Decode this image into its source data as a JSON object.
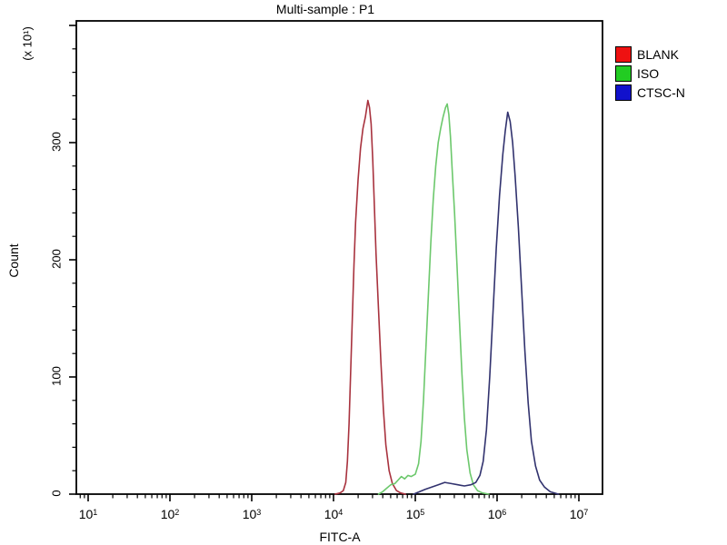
{
  "chart_data": {
    "type": "line",
    "title": "Multi-sample : P1",
    "xlabel": "FITC-A",
    "ylabel": "Count",
    "y_scale_note": "(x 10¹)",
    "x_axis": {
      "scale": "log",
      "min_log": 0.856,
      "max_log": 7.28,
      "decade_min": 1,
      "decade_max": 7,
      "tick_start_log": 0.9
    },
    "y_axis": {
      "min": 0,
      "max": 400,
      "major_step": 100,
      "minor_step": 20
    },
    "x_ticks": [
      {
        "base": "10",
        "exp": "1"
      },
      {
        "base": "10",
        "exp": "2"
      },
      {
        "base": "10",
        "exp": "3"
      },
      {
        "base": "10",
        "exp": "4"
      },
      {
        "base": "10",
        "exp": "5"
      },
      {
        "base": "10",
        "exp": "6"
      },
      {
        "base": "10",
        "exp": "7"
      }
    ],
    "y_ticks": [
      "0",
      "100",
      "200",
      "300"
    ],
    "grid": false,
    "legend_position": "right",
    "legend": [
      {
        "label": "BLANK",
        "swatch": "#ee1111"
      },
      {
        "label": "ISO",
        "swatch": "#22cc22"
      },
      {
        "label": "CTSC-N",
        "swatch": "#1111cc"
      }
    ],
    "frame_color": "#000000",
    "series": [
      {
        "name": "BLANK",
        "color": "#a8323e",
        "peak_x": 27000,
        "peak_count": 336,
        "points": [
          [
            4.02,
            0
          ],
          [
            4.08,
            1
          ],
          [
            4.12,
            3
          ],
          [
            4.15,
            10
          ],
          [
            4.17,
            28
          ],
          [
            4.19,
            60
          ],
          [
            4.21,
            105
          ],
          [
            4.23,
            150
          ],
          [
            4.25,
            195
          ],
          [
            4.27,
            232
          ],
          [
            4.3,
            268
          ],
          [
            4.33,
            295
          ],
          [
            4.36,
            312
          ],
          [
            4.39,
            322
          ],
          [
            4.42,
            336
          ],
          [
            4.44,
            330
          ],
          [
            4.46,
            316
          ],
          [
            4.48,
            285
          ],
          [
            4.5,
            245
          ],
          [
            4.52,
            205
          ],
          [
            4.55,
            158
          ],
          [
            4.58,
            112
          ],
          [
            4.61,
            72
          ],
          [
            4.64,
            42
          ],
          [
            4.68,
            20
          ],
          [
            4.72,
            9
          ],
          [
            4.77,
            3
          ],
          [
            4.82,
            1
          ],
          [
            4.88,
            0
          ]
        ]
      },
      {
        "name": "ISO",
        "color": "#6cc86c",
        "peak_x": 245000,
        "peak_count": 333,
        "points": [
          [
            4.55,
            0
          ],
          [
            4.6,
            2
          ],
          [
            4.65,
            5
          ],
          [
            4.7,
            8
          ],
          [
            4.75,
            9
          ],
          [
            4.79,
            12
          ],
          [
            4.83,
            15
          ],
          [
            4.87,
            13
          ],
          [
            4.91,
            16
          ],
          [
            4.95,
            15
          ],
          [
            5.0,
            17
          ],
          [
            5.04,
            26
          ],
          [
            5.07,
            45
          ],
          [
            5.1,
            80
          ],
          [
            5.13,
            125
          ],
          [
            5.16,
            170
          ],
          [
            5.19,
            215
          ],
          [
            5.22,
            252
          ],
          [
            5.25,
            280
          ],
          [
            5.28,
            300
          ],
          [
            5.31,
            312
          ],
          [
            5.34,
            322
          ],
          [
            5.37,
            330
          ],
          [
            5.39,
            333
          ],
          [
            5.41,
            324
          ],
          [
            5.43,
            305
          ],
          [
            5.45,
            278
          ],
          [
            5.48,
            240
          ],
          [
            5.51,
            195
          ],
          [
            5.54,
            148
          ],
          [
            5.57,
            103
          ],
          [
            5.6,
            65
          ],
          [
            5.63,
            38
          ],
          [
            5.67,
            18
          ],
          [
            5.71,
            8
          ],
          [
            5.76,
            3
          ],
          [
            5.82,
            1
          ],
          [
            5.9,
            0
          ]
        ]
      },
      {
        "name": "CTSC-N",
        "color": "#31326e",
        "peak_x": 1350000,
        "peak_count": 326,
        "points": [
          [
            4.98,
            0
          ],
          [
            5.05,
            2
          ],
          [
            5.12,
            4
          ],
          [
            5.2,
            6
          ],
          [
            5.28,
            8
          ],
          [
            5.36,
            10
          ],
          [
            5.44,
            9
          ],
          [
            5.52,
            8
          ],
          [
            5.6,
            7
          ],
          [
            5.68,
            8
          ],
          [
            5.74,
            10
          ],
          [
            5.79,
            16
          ],
          [
            5.83,
            28
          ],
          [
            5.87,
            55
          ],
          [
            5.91,
            100
          ],
          [
            5.95,
            155
          ],
          [
            5.99,
            210
          ],
          [
            6.03,
            255
          ],
          [
            6.07,
            290
          ],
          [
            6.1,
            310
          ],
          [
            6.13,
            326
          ],
          [
            6.16,
            318
          ],
          [
            6.19,
            300
          ],
          [
            6.22,
            272
          ],
          [
            6.26,
            228
          ],
          [
            6.3,
            175
          ],
          [
            6.34,
            122
          ],
          [
            6.38,
            78
          ],
          [
            6.42,
            45
          ],
          [
            6.47,
            24
          ],
          [
            6.52,
            12
          ],
          [
            6.58,
            6
          ],
          [
            6.65,
            2
          ],
          [
            6.75,
            0
          ]
        ]
      }
    ]
  }
}
